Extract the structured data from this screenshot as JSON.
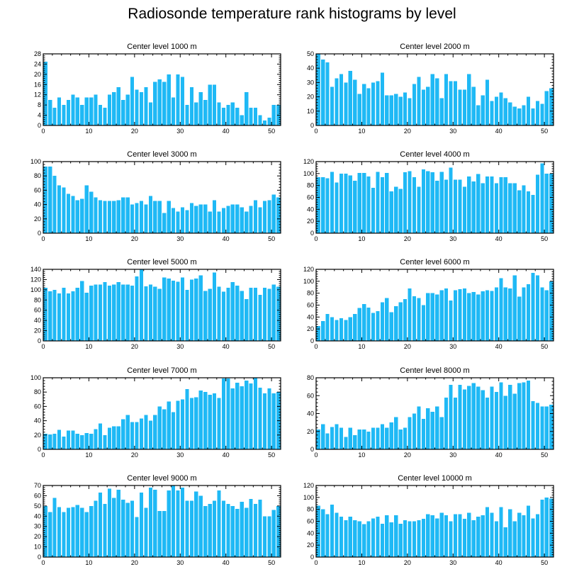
{
  "title": "Radiosonde temperature rank histograms by level",
  "bar_color": "#1fb9f5",
  "chart_data": [
    {
      "type": "bar",
      "title": "Center level 1000 m",
      "x_start": 0,
      "xlim": [
        0,
        52
      ],
      "xticks": [
        0,
        10,
        20,
        30,
        40,
        50
      ],
      "ylim": [
        0,
        28
      ],
      "yticks": [
        0,
        4,
        8,
        12,
        16,
        20,
        24,
        28
      ],
      "values": [
        25,
        10,
        7,
        11,
        8,
        10,
        12,
        11,
        8,
        11,
        11,
        12,
        8,
        7,
        12,
        13,
        15,
        10,
        12,
        19,
        14,
        13,
        15,
        9,
        17,
        18,
        17,
        20,
        11,
        20,
        19,
        8,
        15,
        9,
        13,
        10,
        16,
        16,
        9,
        7,
        8,
        9,
        7,
        4,
        13,
        7,
        7,
        4,
        2,
        3,
        8,
        8
      ]
    },
    {
      "type": "bar",
      "title": "Center level 2000 m",
      "x_start": 0,
      "xlim": [
        0,
        52
      ],
      "xticks": [
        0,
        10,
        20,
        30,
        40,
        50
      ],
      "ylim": [
        0,
        50
      ],
      "yticks": [
        0,
        10,
        20,
        30,
        40,
        50
      ],
      "values": [
        50,
        46,
        44,
        27,
        33,
        36,
        30,
        38,
        32,
        22,
        29,
        26,
        30,
        31,
        37,
        21,
        21,
        22,
        20,
        23,
        19,
        29,
        34,
        25,
        27,
        36,
        33,
        19,
        36,
        31,
        31,
        25,
        25,
        36,
        27,
        14,
        21,
        32,
        17,
        20,
        23,
        19,
        16,
        13,
        12,
        14,
        20,
        12,
        17,
        15,
        24,
        26
      ]
    },
    {
      "type": "bar",
      "title": "Center level 3000 m",
      "x_start": 0,
      "xlim": [
        0,
        52
      ],
      "xticks": [
        0,
        10,
        20,
        30,
        40,
        50
      ],
      "ylim": [
        0,
        100
      ],
      "yticks": [
        0,
        20,
        40,
        60,
        80,
        100
      ],
      "values": [
        93,
        93,
        80,
        67,
        64,
        55,
        52,
        46,
        48,
        67,
        58,
        50,
        46,
        45,
        45,
        45,
        46,
        50,
        50,
        40,
        42,
        45,
        40,
        52,
        45,
        45,
        28,
        45,
        35,
        30,
        36,
        32,
        42,
        38,
        40,
        40,
        30,
        46,
        30,
        35,
        38,
        40,
        40,
        36,
        30,
        38,
        46,
        36,
        45,
        46,
        54,
        50
      ]
    },
    {
      "type": "bar",
      "title": "Center level 4000 m",
      "x_start": 0,
      "xlim": [
        0,
        52
      ],
      "xticks": [
        0,
        10,
        20,
        30,
        40,
        50
      ],
      "ylim": [
        0,
        120
      ],
      "yticks": [
        0,
        20,
        40,
        60,
        80,
        100,
        120
      ],
      "values": [
        94,
        94,
        92,
        103,
        85,
        100,
        100,
        97,
        88,
        101,
        101,
        95,
        76,
        103,
        94,
        101,
        70,
        78,
        74,
        102,
        104,
        94,
        78,
        107,
        104,
        102,
        88,
        103,
        90,
        110,
        90,
        90,
        78,
        95,
        87,
        99,
        84,
        95,
        95,
        84,
        94,
        94,
        84,
        84,
        72,
        80,
        70,
        64,
        98,
        117,
        100,
        100
      ]
    },
    {
      "type": "bar",
      "title": "Center level 5000 m",
      "x_start": 0,
      "xlim": [
        0,
        52
      ],
      "xticks": [
        0,
        10,
        20,
        30,
        40,
        50
      ],
      "ylim": [
        0,
        140
      ],
      "yticks": [
        0,
        20,
        40,
        60,
        80,
        100,
        120,
        140
      ],
      "values": [
        104,
        97,
        100,
        93,
        104,
        93,
        97,
        104,
        117,
        94,
        108,
        110,
        110,
        115,
        108,
        110,
        115,
        110,
        110,
        108,
        126,
        140,
        107,
        110,
        106,
        102,
        124,
        122,
        118,
        116,
        124,
        100,
        120,
        122,
        128,
        98,
        102,
        134,
        106,
        96,
        104,
        115,
        108,
        98,
        82,
        104,
        104,
        90,
        104,
        102,
        110,
        106
      ]
    },
    {
      "type": "bar",
      "title": "Center level 6000 m",
      "x_start": 0,
      "xlim": [
        0,
        52
      ],
      "xticks": [
        0,
        10,
        20,
        30,
        40,
        50
      ],
      "ylim": [
        0,
        120
      ],
      "yticks": [
        0,
        20,
        40,
        60,
        80,
        100,
        120
      ],
      "values": [
        25,
        33,
        45,
        40,
        35,
        38,
        35,
        40,
        45,
        55,
        62,
        56,
        47,
        50,
        65,
        72,
        48,
        58,
        65,
        70,
        88,
        75,
        72,
        60,
        80,
        80,
        78,
        85,
        88,
        68,
        85,
        87,
        88,
        80,
        82,
        78,
        83,
        85,
        84,
        90,
        105,
        90,
        88,
        110,
        74,
        90,
        95,
        114,
        110,
        90,
        85,
        100
      ]
    },
    {
      "type": "bar",
      "title": "Center level 7000 m",
      "x_start": 0,
      "xlim": [
        0,
        52
      ],
      "xticks": [
        0,
        10,
        20,
        30,
        40,
        50
      ],
      "ylim": [
        0,
        100
      ],
      "yticks": [
        0,
        20,
        40,
        60,
        80,
        100
      ],
      "values": [
        22,
        21,
        22,
        27,
        18,
        26,
        26,
        22,
        20,
        23,
        22,
        28,
        36,
        20,
        30,
        32,
        32,
        42,
        48,
        38,
        38,
        43,
        48,
        40,
        48,
        60,
        56,
        67,
        52,
        68,
        70,
        84,
        72,
        73,
        82,
        80,
        76,
        78,
        72,
        99,
        99,
        85,
        93,
        88,
        96,
        92,
        100,
        86,
        78,
        85,
        78,
        80
      ]
    },
    {
      "type": "bar",
      "title": "Center level 8000 m",
      "x_start": 0,
      "xlim": [
        0,
        52
      ],
      "xticks": [
        0,
        10,
        20,
        30,
        40,
        50
      ],
      "ylim": [
        0,
        80
      ],
      "yticks": [
        0,
        20,
        40,
        60,
        80
      ],
      "values": [
        22,
        28,
        18,
        25,
        28,
        24,
        14,
        24,
        16,
        22,
        22,
        20,
        24,
        24,
        28,
        24,
        30,
        36,
        22,
        24,
        36,
        40,
        48,
        34,
        46,
        42,
        48,
        36,
        58,
        72,
        58,
        72,
        67,
        71,
        74,
        70,
        66,
        58,
        70,
        64,
        75,
        60,
        72,
        62,
        74,
        75,
        77,
        54,
        52,
        48,
        48,
        50
      ]
    },
    {
      "type": "bar",
      "title": "Center level 9000 m",
      "x_start": 0,
      "xlim": [
        0,
        52
      ],
      "xticks": [
        0,
        10,
        20,
        30,
        40,
        50
      ],
      "ylim": [
        0,
        70
      ],
      "yticks": [
        0,
        10,
        20,
        30,
        40,
        50,
        60,
        70
      ],
      "values": [
        50,
        44,
        58,
        49,
        44,
        48,
        49,
        51,
        48,
        44,
        50,
        55,
        63,
        52,
        67,
        58,
        66,
        56,
        53,
        55,
        39,
        63,
        48,
        68,
        66,
        45,
        45,
        65,
        70,
        65,
        68,
        55,
        55,
        64,
        60,
        50,
        52,
        55,
        65,
        55,
        52,
        50,
        47,
        54,
        48,
        57,
        52,
        56,
        40,
        40,
        46,
        50
      ]
    },
    {
      "type": "bar",
      "title": "Center level 10000 m",
      "x_start": 0,
      "xlim": [
        0,
        52
      ],
      "xticks": [
        0,
        10,
        20,
        30,
        40,
        50
      ],
      "ylim": [
        0,
        120
      ],
      "yticks": [
        0,
        20,
        40,
        60,
        80,
        100,
        120
      ],
      "values": [
        86,
        80,
        72,
        88,
        74,
        68,
        62,
        68,
        62,
        60,
        55,
        60,
        65,
        68,
        56,
        70,
        58,
        70,
        56,
        62,
        60,
        60,
        62,
        64,
        72,
        70,
        65,
        74,
        70,
        60,
        72,
        72,
        64,
        74,
        62,
        68,
        70,
        84,
        74,
        60,
        84,
        50,
        80,
        60,
        74,
        70,
        86,
        65,
        72,
        96,
        100,
        98
      ]
    }
  ]
}
